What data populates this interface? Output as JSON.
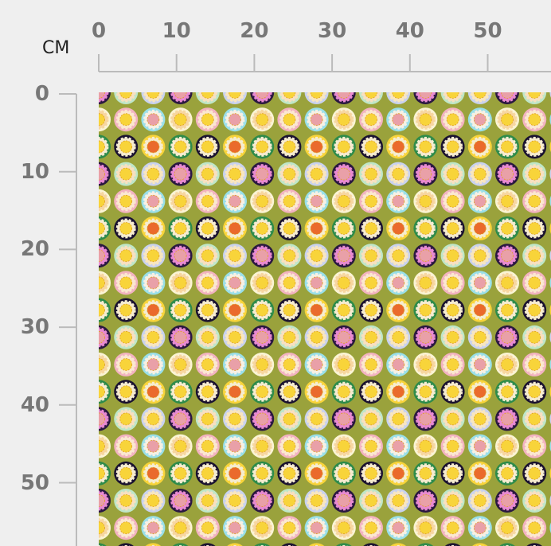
{
  "ruler": {
    "unit": "CM",
    "x_ticks": [
      "0",
      "10",
      "20",
      "30",
      "40",
      "50"
    ],
    "y_ticks": [
      "0",
      "10",
      "20",
      "30",
      "40",
      "50"
    ]
  },
  "fabric": {
    "background": "#9aa23c",
    "motif": "circle-flower-polka-dot"
  }
}
